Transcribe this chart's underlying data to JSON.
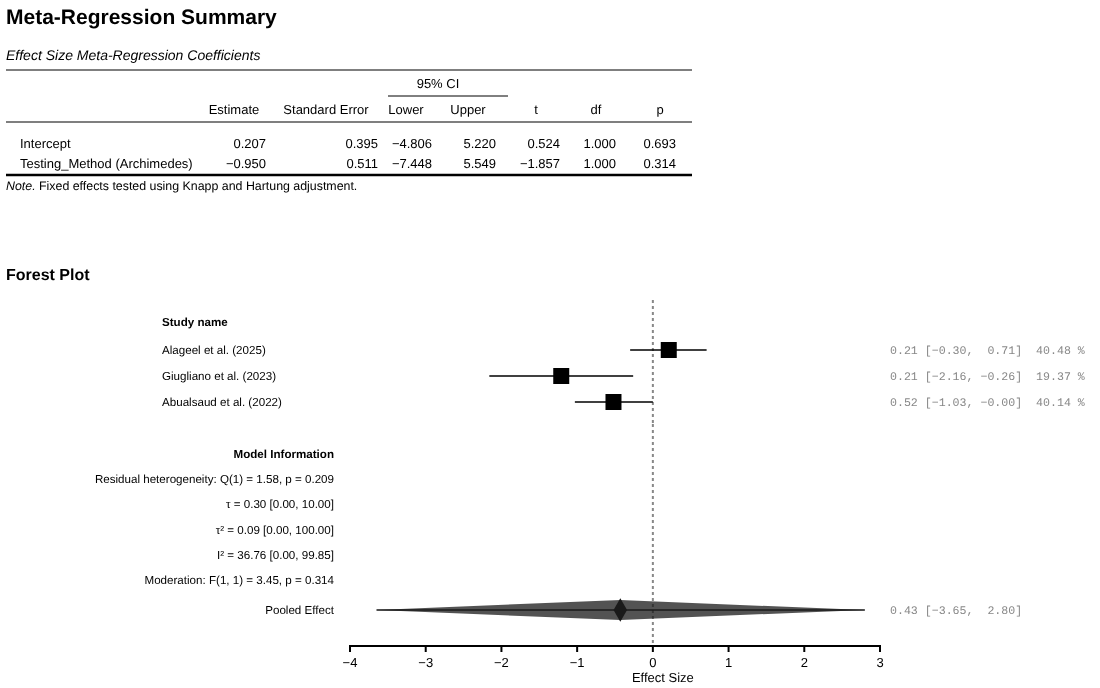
{
  "chart_data": [
    {
      "type": "other",
      "title": "Meta-Regression Summary",
      "subtitle": "Effect Size Meta-Regression Coefficients",
      "annotations": [
        "95% CI",
        "Estimate",
        "Standard Error",
        "Lower",
        "Upper",
        "t",
        "df",
        "p",
        "Intercept",
        "0.207",
        "0.395",
        "−4.806",
        "5.220",
        "0.524",
        "1.000",
        "0.693",
        "Testing_Method (Archimedes)",
        "−0.950",
        "0.511",
        "−7.448",
        "5.549",
        "−1.857",
        "1.000",
        "0.314",
        "Note.  Fixed effects tested using Knapp and Hartung adjustment."
      ]
    },
    {
      "type": "scatter",
      "title": "Forest Plot",
      "orientation": "horizontal",
      "tick_labels": "y",
      "categories": [
        "Alageel et al. (2025)",
        "Giugliano et al. (2023)",
        "Abualsaud et al. (2022)"
      ],
      "xlim": [
        -4,
        3
      ],
      "series": [
        {
          "color": "#000000",
          "marker": "square",
          "values": [
            0.21,
            -1.21,
            -0.52
          ],
          "errors": [
            [
              -0.3,
              0.71
            ],
            [
              -2.16,
              -0.26
            ],
            [
              -1.03,
              -0.0
            ]
          ]
        }
      ],
      "ref_lines": [
        {
          "axis": "x",
          "value": 0,
          "line_style": "dotted",
          "color": "#888888"
        }
      ],
      "annotations": [
        "Study name",
        "0.21 [−0.30,  0.71]  40.48 %",
        "0.21 [−2.16, −0.26]  19.37 %",
        "0.52 [−1.03, −0.00]  40.14 %"
      ]
    },
    {
      "type": "scatter",
      "orientation": "horizontal",
      "xlabel": "Effect Size",
      "categories": [
        "Pooled Effect"
      ],
      "xlim": [
        -4,
        3
      ],
      "xticks": [
        {
          "value": -4,
          "label": "−4"
        },
        {
          "value": -3,
          "label": "−3"
        },
        {
          "value": -2,
          "label": "−2"
        },
        {
          "value": -1,
          "label": "−1"
        },
        {
          "value": 0,
          "label": "0"
        },
        {
          "value": 1,
          "label": "1"
        },
        {
          "value": 2,
          "label": "2"
        },
        {
          "value": 3,
          "label": "3"
        }
      ],
      "series": [
        {
          "color": "#1a1a1a",
          "marker": "diamond",
          "values": [
            -0.43
          ],
          "errors": [
            [
              -3.65,
              2.8
            ]
          ]
        }
      ],
      "ref_lines": [
        {
          "axis": "x",
          "value": 0,
          "line_style": "dotted",
          "color": "#888888"
        }
      ],
      "annotations": [
        "Model Information",
        "Residual heterogeneity: Q(1) = 1.58, p = 0.209",
        "τ  = 0.30 [0.00, 10.00]",
        "τ² = 0.09 [0.00, 100.00]",
        "I² = 36.76 [0.00, 99.85]",
        "Moderation: F(1, 1) = 3.45, p = 0.314",
        "0.43 [−3.65,  2.80]"
      ]
    }
  ]
}
